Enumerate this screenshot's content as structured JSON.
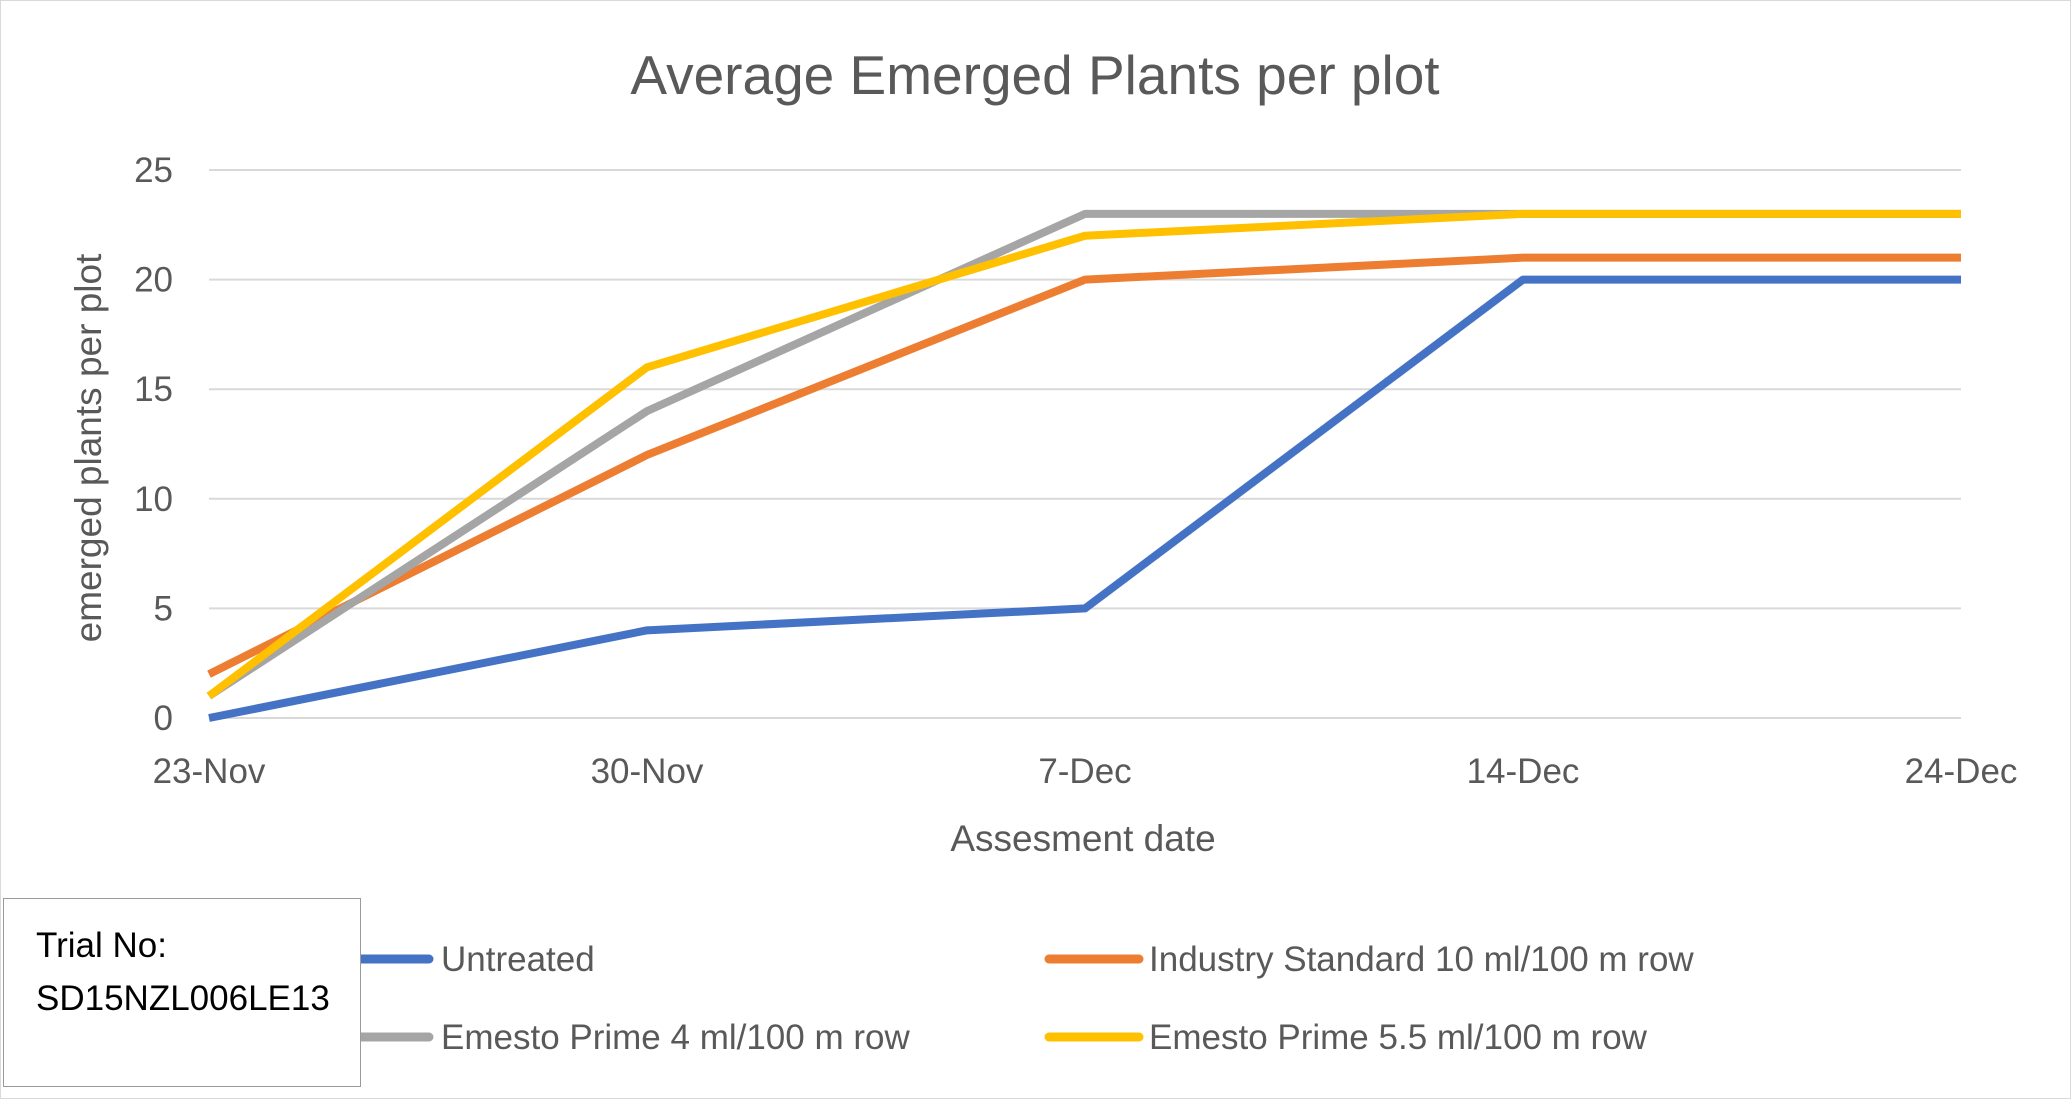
{
  "chart_data": {
    "type": "line",
    "title": "Average Emerged Plants per plot",
    "xlabel": "Assesment date",
    "ylabel": "emerged plants per plot",
    "categories": [
      "23-Nov",
      "30-Nov",
      "7-Dec",
      "14-Dec",
      "24-Dec"
    ],
    "ylim": [
      0,
      25
    ],
    "yticks": [
      0,
      5,
      10,
      15,
      20,
      25
    ],
    "grid": true,
    "legend_position": "bottom",
    "series": [
      {
        "name": "Untreated",
        "values": [
          0,
          4,
          5,
          20,
          20
        ],
        "color": "#4472c4"
      },
      {
        "name": "Industry Standard 10 ml/100 m row",
        "values": [
          2,
          12,
          20,
          21,
          21
        ],
        "color": "#ed7d31"
      },
      {
        "name": "Emesto Prime 4 ml/100 m row",
        "values": [
          1,
          14,
          23,
          23,
          23
        ],
        "color": "#a5a5a5"
      },
      {
        "name": "Emesto Prime 5.5 ml/100 m row",
        "values": [
          1,
          16,
          22,
          23,
          23
        ],
        "color": "#ffc000"
      }
    ]
  },
  "annotation": {
    "line1": "Trial No:",
    "line2": "SD15NZL006LE13"
  }
}
